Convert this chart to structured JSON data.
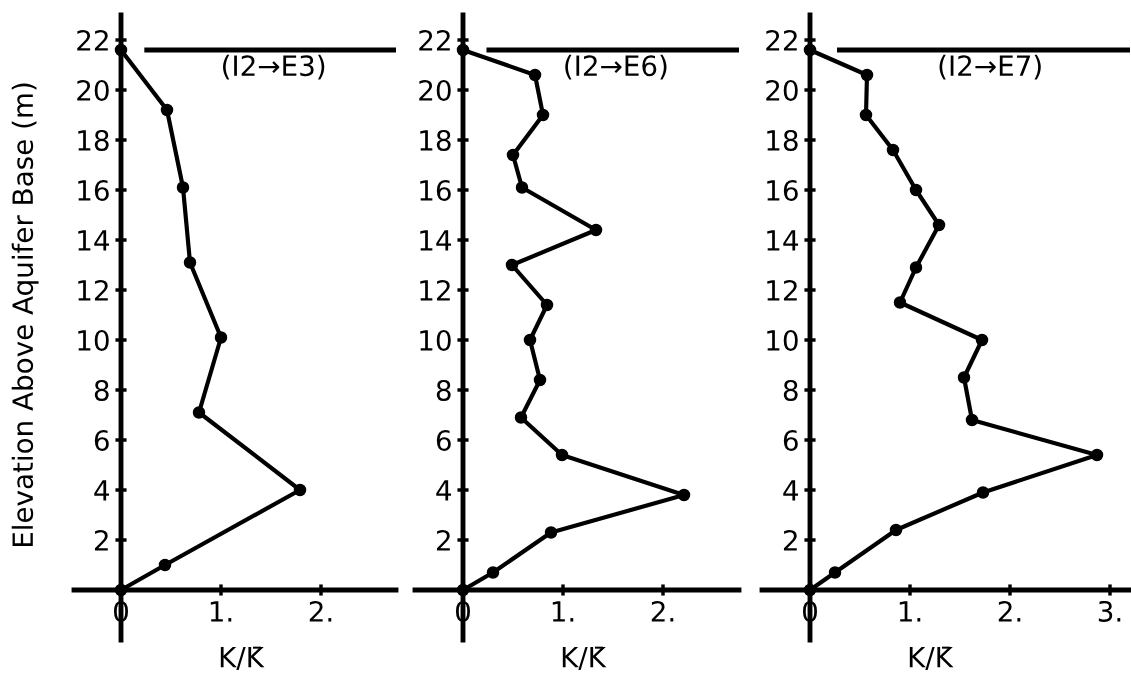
{
  "chart_data": [
    {
      "type": "line",
      "ylabel": "Elevation Above Aquifer Base (m)",
      "xlabel": "K/K̄",
      "annotations": [
        "(I2→E3)"
      ],
      "marker": "circle",
      "line_style": "solid",
      "grid": false,
      "xlim": [
        -0.47,
        2.75
      ],
      "xticks": [
        0,
        {
          "value": 1,
          "label": "1."
        },
        {
          "value": 2,
          "label": "2."
        }
      ],
      "ylim": [
        -2,
        23
      ],
      "yticks": [
        2,
        4,
        6,
        8,
        10,
        12,
        14,
        16,
        18,
        20,
        22
      ],
      "ref_lines": [
        {
          "axis": "y",
          "value": 21.6,
          "color": "#000000"
        }
      ],
      "series": [
        {
          "color": "#000000",
          "x": [
            0,
            0.44,
            1.79,
            0.78,
            1.0,
            0.69,
            0.62,
            0.46,
            0
          ],
          "values": [
            0,
            1.0,
            4.0,
            7.1,
            10.1,
            13.1,
            16.1,
            19.2,
            21.6
          ]
        }
      ]
    },
    {
      "type": "line",
      "xlabel": "K/K̄",
      "annotations": [
        "(I2→E6)"
      ],
      "marker": "circle",
      "line_style": "solid",
      "grid": false,
      "xlim": [
        -0.48,
        2.76
      ],
      "xticks": [
        0,
        {
          "value": 1,
          "label": "1."
        },
        {
          "value": 2,
          "label": "2."
        }
      ],
      "ylim": [
        -2,
        23
      ],
      "yticks": [
        2,
        4,
        6,
        8,
        10,
        12,
        14,
        16,
        18,
        20,
        22
      ],
      "ref_lines": [
        {
          "axis": "y",
          "value": 21.6,
          "color": "#000000"
        }
      ],
      "series": [
        {
          "color": "#000000",
          "x": [
            0,
            0.3,
            0.88,
            2.21,
            0.99,
            0.58,
            0.77,
            0.67,
            0.84,
            0.49,
            1.33,
            0.59,
            0.5,
            0.8,
            0.72,
            0
          ],
          "values": [
            0,
            0.7,
            2.3,
            3.8,
            5.4,
            6.9,
            8.4,
            10.0,
            11.4,
            13.0,
            14.4,
            16.1,
            17.4,
            19.0,
            20.6,
            21.6
          ]
        }
      ]
    },
    {
      "type": "line",
      "xlabel": "K/K̄",
      "annotations": [
        "(I2→E7)"
      ],
      "marker": "circle",
      "line_style": "solid",
      "grid": false,
      "xlim": [
        -0.48,
        3.2
      ],
      "xticks": [
        0,
        {
          "value": 1,
          "label": "1."
        },
        {
          "value": 2,
          "label": "2."
        },
        {
          "value": 3,
          "label": "3."
        }
      ],
      "ylim": [
        -2,
        23
      ],
      "yticks": [
        2,
        4,
        6,
        8,
        10,
        12,
        14,
        16,
        18,
        20,
        22
      ],
      "ref_lines": [
        {
          "axis": "y",
          "value": 21.6,
          "color": "#000000"
        }
      ],
      "series": [
        {
          "color": "#000000",
          "x": [
            0,
            0.25,
            0.86,
            1.73,
            2.87,
            1.62,
            1.54,
            1.72,
            0.9,
            1.06,
            1.29,
            1.06,
            0.83,
            0.56,
            0.57,
            0
          ],
          "values": [
            0,
            0.7,
            2.4,
            3.9,
            5.4,
            6.8,
            8.5,
            10.0,
            11.5,
            12.9,
            14.6,
            16.0,
            17.6,
            19.0,
            20.6,
            21.6
          ]
        }
      ]
    }
  ]
}
